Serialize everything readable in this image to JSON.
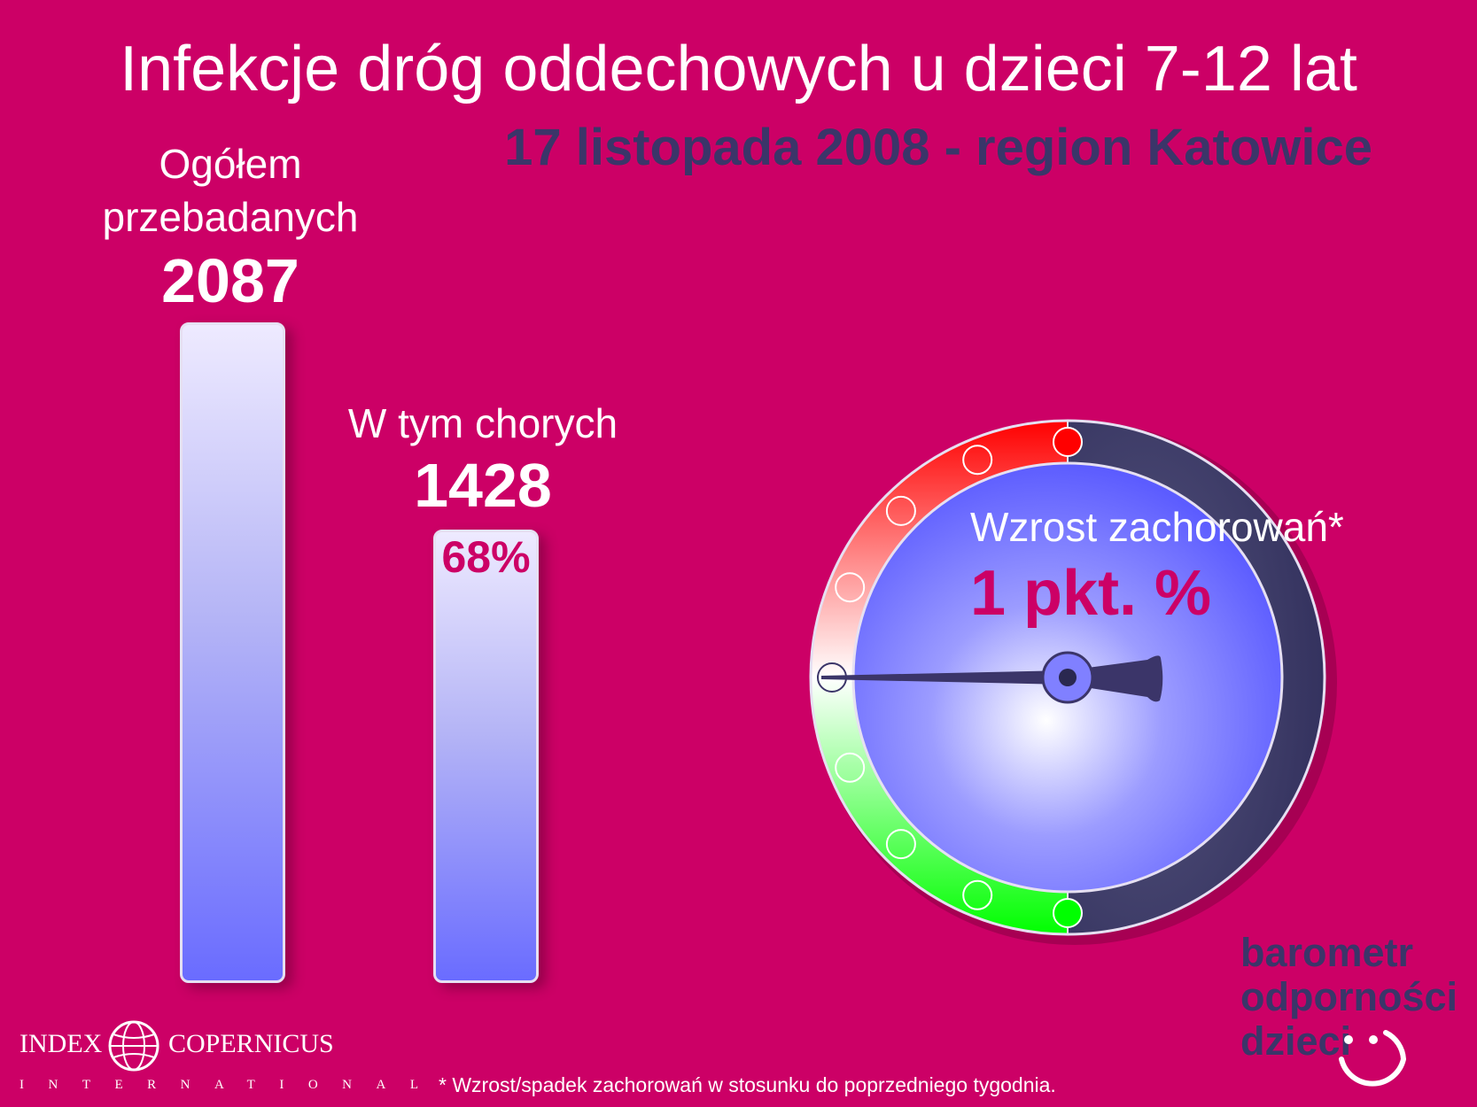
{
  "title": "Infekcje dróg oddechowych u dzieci 7-12 lat",
  "subtitle": "17 listopada 2008 - region Katowice",
  "chart_data": [
    {
      "type": "bar",
      "categories": [
        "Ogółem przebadanych",
        "W tym chorych"
      ],
      "values": [
        2087,
        1428
      ],
      "series": [
        {
          "label_lines": [
            [
              "Ogółem",
              "przebadanych"
            ],
            [
              "W tym chorych"
            ]
          ],
          "value_labels": [
            "2087",
            "1428"
          ],
          "percent_labels": [
            "",
            "68%"
          ]
        }
      ]
    },
    {
      "type": "gauge",
      "title": "Wzrost zachorowań*",
      "value_label": "1 pkt. %",
      "value": 1,
      "scale_colors": {
        "top": "#ff0000",
        "middle": "#ffffff",
        "bottom": "#00ff00",
        "inactive": "#3b3a68"
      }
    }
  ],
  "footnote": "* Wzrost/spadek zachorowań w stosunku do poprzedniego tygodnia.",
  "logo": {
    "left_word": "INDEX",
    "right_word": "COPERNICUS",
    "sub": "INTERNATIONAL"
  },
  "brand": {
    "line1": "barometr",
    "line2": "odporności",
    "line3": "dzieci"
  },
  "colors": {
    "background": "#cc0066",
    "accent_dark": "#3b3569",
    "bar_top": "#eeeaff",
    "bar_bottom": "#6a6cff"
  },
  "icons": [
    "globe-icon",
    "smiley-icon"
  ]
}
